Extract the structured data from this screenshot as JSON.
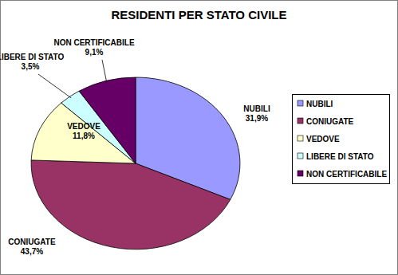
{
  "chart_data": {
    "type": "pie",
    "title": "RESIDENTI PER STATO CIVILE",
    "categories": [
      "NUBILI",
      "CONIUGATE",
      "VEDOVE",
      "LIBERE DI STATO",
      "NON CERTIFICABILE"
    ],
    "values": [
      31.9,
      43.7,
      11.8,
      3.5,
      9.1
    ],
    "value_labels": [
      "31,9%",
      "43,7%",
      "11,8%",
      "3,5%",
      "9,1%"
    ],
    "colors": [
      "#9999ff",
      "#993366",
      "#ffffcc",
      "#ccffff",
      "#660066"
    ],
    "data_labels": true,
    "legend": "right"
  }
}
